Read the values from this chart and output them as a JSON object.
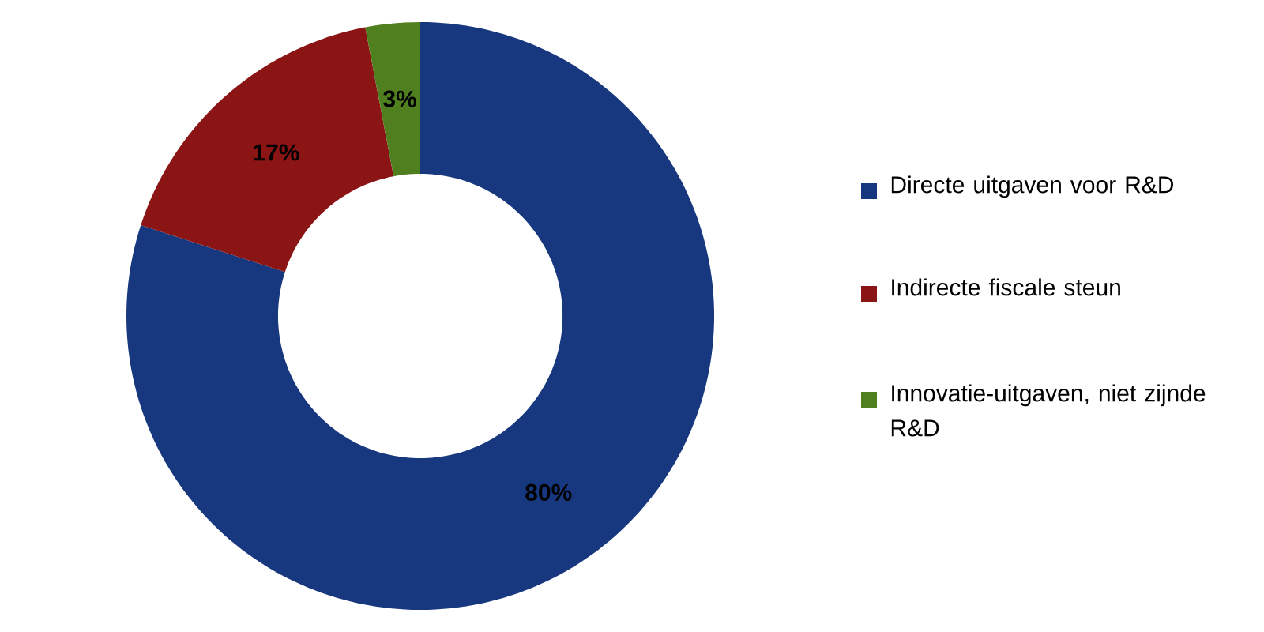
{
  "chart_data": {
    "type": "donut",
    "categories": [
      "Directe uitgaven voor R&D",
      "Indirecte fiscale steun",
      "Innovatie-uitgaven, niet zijnde R&D"
    ],
    "values": [
      80,
      17,
      3
    ],
    "value_labels": [
      "80%",
      "17%",
      "3%"
    ],
    "colors": [
      "#17377f",
      "#8b1515",
      "#4f7f1f"
    ],
    "legend": "right"
  }
}
